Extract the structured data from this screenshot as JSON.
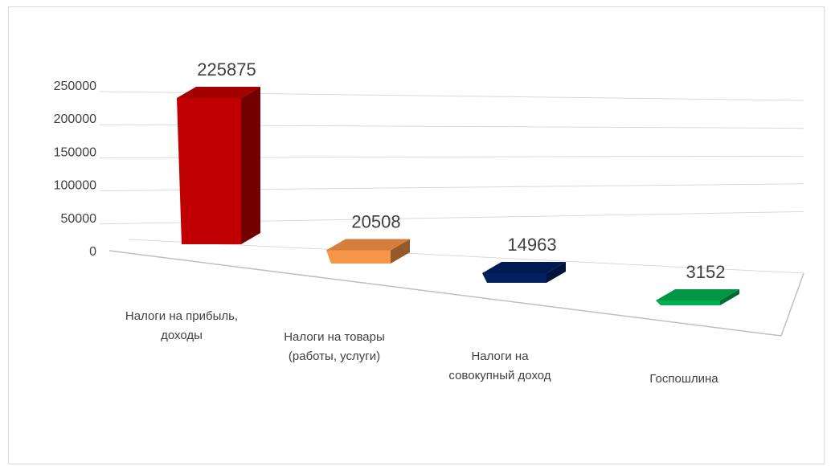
{
  "chart_data": {
    "type": "bar",
    "categories": [
      [
        "Налоги на прибыль,",
        "доходы"
      ],
      [
        "Налоги на товары",
        "(работы, услуги)"
      ],
      [
        "Налоги на",
        "совокупный доход"
      ],
      [
        "Госпошлина"
      ]
    ],
    "values": [
      225875,
      20508,
      14963,
      3152
    ],
    "data_labels": [
      "225875",
      "20508",
      "14963",
      "3152"
    ],
    "y_ticks": [
      "0",
      "50000",
      "100000",
      "150000",
      "200000",
      "250000"
    ],
    "ylim": [
      0,
      250000
    ],
    "title": "",
    "xlabel": "",
    "ylabel": "",
    "grid": true,
    "style": "3d-column",
    "colors": [
      "#c00000",
      "#f79646",
      "#002060",
      "#00b050"
    ]
  }
}
